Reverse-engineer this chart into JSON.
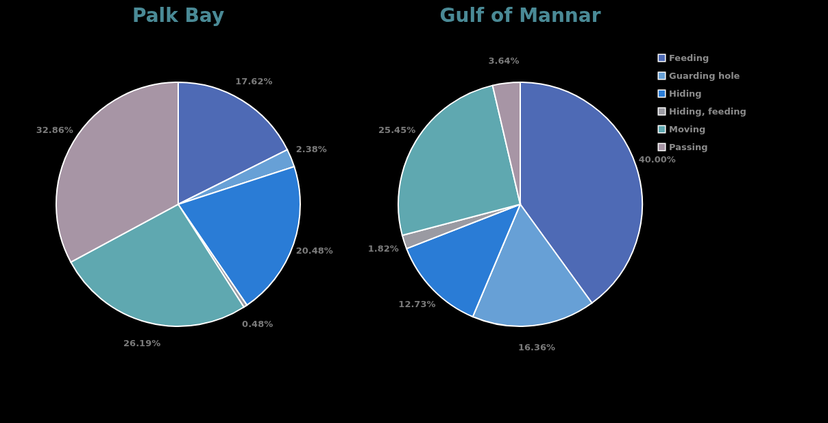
{
  "chart_data": [
    {
      "type": "pie",
      "title": "Palk Bay",
      "categories": [
        null,
        null,
        null,
        null,
        null,
        null
      ],
      "values": [
        17.62,
        2.38,
        20.48,
        0.48,
        26.19,
        32.86
      ],
      "value_labels": [
        "17.62%",
        "2.38%",
        "20.48%",
        "0.48%",
        "26.19%",
        "32.86%"
      ],
      "colors": [
        "#4e6ab5",
        "#67a0d6",
        "#2a7cd6",
        "#9a9aa2",
        "#5fa8b0",
        "#a795a5"
      ],
      "legend": false
    },
    {
      "type": "pie",
      "title": "Gulf of Mannar",
      "categories": [
        "Feeding",
        "Guarding hole",
        "Hiding",
        "Hiding, feeding",
        "Moving",
        "Passing"
      ],
      "values": [
        40.0,
        16.36,
        12.73,
        1.82,
        25.45,
        3.64
      ],
      "value_labels": [
        "40.00%",
        "16.36%",
        "12.73%",
        "1.82%",
        "25.45%",
        "3.64%"
      ],
      "colors": [
        "#4e6ab5",
        "#67a0d6",
        "#2a7cd6",
        "#9a9aa2",
        "#5fa8b0",
        "#a795a5"
      ],
      "legend": "right"
    }
  ]
}
